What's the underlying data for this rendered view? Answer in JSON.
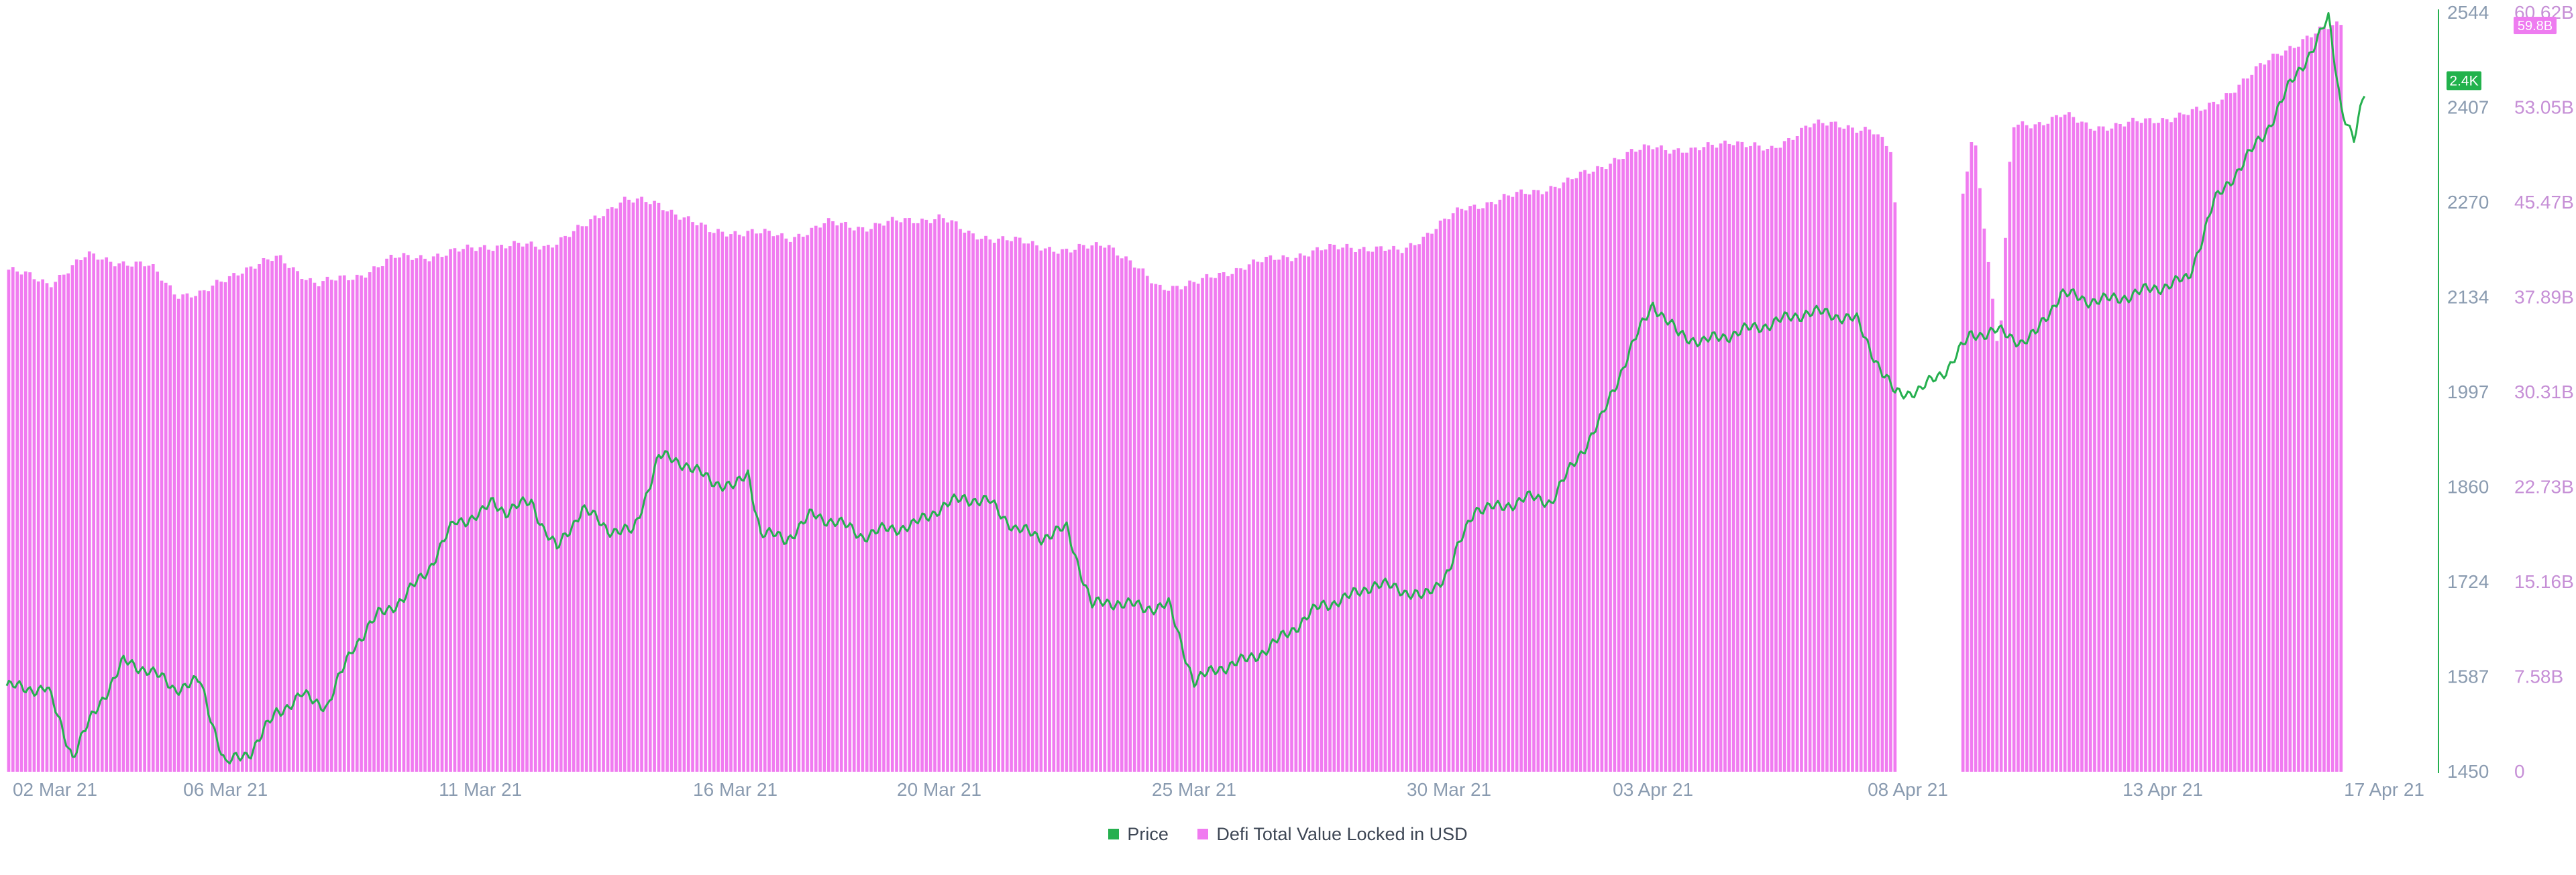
{
  "colors": {
    "price": "#26b04f",
    "tvl": "#f07bf0",
    "price_axis_text": "#8a9bb0",
    "tvl_axis_text": "#c68fd6",
    "date_axis_text": "#8a9bb0",
    "price_badge_bg": "#22b24c",
    "tvl_badge_bg": "#ee7cf0"
  },
  "legend": [
    {
      "name": "Price",
      "color": "#26b04f"
    },
    {
      "name": "Defi Total Value Locked in USD",
      "color": "#f07bf0"
    }
  ],
  "badges": {
    "price": "2.4K",
    "tvl": "59.8B"
  },
  "chart_data": {
    "type": "bar",
    "combo": "bar + line, dual y-axis",
    "title": "",
    "xlabel": "",
    "ylabel": "",
    "x_tick_labels": [
      "02 Mar 21",
      "06 Mar 21",
      "11 Mar 21",
      "16 Mar 21",
      "20 Mar 21",
      "25 Mar 21",
      "30 Mar 21",
      "03 Apr 21",
      "08 Apr 21",
      "13 Apr 21",
      "17 Apr 21"
    ],
    "x_range": [
      "2021-03-01T17:00",
      "2021-04-17T00:00"
    ],
    "legend_placement": "bottom-center",
    "grid": false,
    "y_left": {
      "series": "Defi Total Value Locked in USD",
      "range": [
        0,
        60.62
      ],
      "unit": "B",
      "tick_labels": [
        "0",
        "7.58B",
        "15.16B",
        "22.73B",
        "30.31B",
        "37.89B",
        "45.47B",
        "53.05B",
        "60.62B"
      ]
    },
    "y_right": {
      "series": "Price",
      "range": [
        1450,
        2544
      ],
      "tick_labels": [
        "1450",
        "1587",
        "1724",
        "1860",
        "1997",
        "2134",
        "2270",
        "2407",
        "2544"
      ]
    },
    "tvl_gap": [
      "2021-04-07T18:00",
      "2021-04-09T00:00"
    ],
    "tvl_anchors": [
      [
        "2021-03-01T17:00",
        40.1
      ],
      [
        "2021-03-02T12:00",
        39.0
      ],
      [
        "2021-03-03T06:00",
        41.2
      ],
      [
        "2021-03-04T12:00",
        40.3
      ],
      [
        "2021-03-05T00:00",
        38.2
      ],
      [
        "2021-03-05T12:00",
        38.1
      ],
      [
        "2021-03-06T06:00",
        40.1
      ],
      [
        "2021-03-07T00:00",
        41.0
      ],
      [
        "2021-03-07T18:00",
        39.0
      ],
      [
        "2021-03-08T12:00",
        39.5
      ],
      [
        "2021-03-09T06:00",
        41.0
      ],
      [
        "2021-03-10T06:00",
        41.3
      ],
      [
        "2021-03-11T00:00",
        42.0
      ],
      [
        "2021-03-12T06:00",
        42.0
      ],
      [
        "2021-03-13T00:00",
        43.5
      ],
      [
        "2021-03-13T18:00",
        45.8
      ],
      [
        "2021-03-14T12:00",
        45.2
      ],
      [
        "2021-03-15T00:00",
        44.3
      ],
      [
        "2021-03-15T12:00",
        43.0
      ],
      [
        "2021-03-16T06:00",
        43.2
      ],
      [
        "2021-03-17T00:00",
        42.6
      ],
      [
        "2021-03-17T18:00",
        43.8
      ],
      [
        "2021-03-18T12:00",
        43.5
      ],
      [
        "2021-03-19T06:00",
        44.0
      ],
      [
        "2021-03-20T00:00",
        44.3
      ],
      [
        "2021-03-20T12:00",
        43.0
      ],
      [
        "2021-03-21T06:00",
        42.5
      ],
      [
        "2021-03-22T00:00",
        42.0
      ],
      [
        "2021-03-22T12:00",
        41.5
      ],
      [
        "2021-03-23T06:00",
        42.3
      ],
      [
        "2021-03-24T06:00",
        38.7
      ],
      [
        "2021-03-25T00:00",
        39.0
      ],
      [
        "2021-03-26T00:00",
        40.5
      ],
      [
        "2021-03-27T06:00",
        41.5
      ],
      [
        "2021-03-28T00:00",
        42.0
      ],
      [
        "2021-03-29T00:00",
        41.5
      ],
      [
        "2021-03-30T06:00",
        45.0
      ],
      [
        "2021-03-31T06:00",
        46.0
      ],
      [
        "2021-04-01T06:00",
        47.0
      ],
      [
        "2021-04-02T06:00",
        49.0
      ],
      [
        "2021-04-03T00:00",
        50.0
      ],
      [
        "2021-04-03T18:00",
        49.5
      ],
      [
        "2021-04-04T12:00",
        50.5
      ],
      [
        "2021-04-05T06:00",
        49.5
      ],
      [
        "2021-04-06T00:00",
        51.7
      ],
      [
        "2021-04-06T18:00",
        51.6
      ],
      [
        "2021-04-07T06:00",
        51.3
      ],
      [
        "2021-04-07T15:00",
        49.5
      ],
      [
        "2021-04-07T18:00",
        43.0
      ],
      [
        "2021-04-09T00:00",
        45.0
      ],
      [
        "2021-04-09T06:00",
        51.5
      ],
      [
        "2021-04-09T18:00",
        33.0
      ],
      [
        "2021-04-10T00:00",
        51.5
      ],
      [
        "2021-04-10T12:00",
        51.8
      ],
      [
        "2021-04-11T00:00",
        52.5
      ],
      [
        "2021-04-11T12:00",
        51.5
      ],
      [
        "2021-04-12T06:00",
        51.7
      ],
      [
        "2021-04-13T00:00",
        52.2
      ],
      [
        "2021-04-13T18:00",
        52.8
      ],
      [
        "2021-04-14T12:00",
        55.0
      ],
      [
        "2021-04-15T06:00",
        57.5
      ],
      [
        "2021-04-15T18:00",
        58.5
      ],
      [
        "2021-04-16T06:00",
        59.5
      ],
      [
        "2021-04-16T11:00",
        59.8
      ]
    ],
    "price_anchors": [
      [
        "2021-03-01T17:00",
        1574
      ],
      [
        "2021-03-02T00:00",
        1570
      ],
      [
        "2021-03-02T12:00",
        1570
      ],
      [
        "2021-03-03T00:00",
        1473
      ],
      [
        "2021-03-03T12:00",
        1545
      ],
      [
        "2021-03-04T00:00",
        1608
      ],
      [
        "2021-03-04T12:00",
        1597
      ],
      [
        "2021-03-05T00:00",
        1570
      ],
      [
        "2021-03-05T12:00",
        1580
      ],
      [
        "2021-03-06T00:00",
        1460
      ],
      [
        "2021-03-06T12:00",
        1480
      ],
      [
        "2021-03-07T00:00",
        1535
      ],
      [
        "2021-03-07T12:00",
        1560
      ],
      [
        "2021-03-08T00:00",
        1545
      ],
      [
        "2021-03-08T12:00",
        1630
      ],
      [
        "2021-03-09T00:00",
        1676
      ],
      [
        "2021-03-09T12:00",
        1700
      ],
      [
        "2021-03-10T00:00",
        1745
      ],
      [
        "2021-03-10T12:00",
        1810
      ],
      [
        "2021-03-11T00:00",
        1820
      ],
      [
        "2021-03-11T06:00",
        1840
      ],
      [
        "2021-03-11T12:00",
        1825
      ],
      [
        "2021-03-12T00:00",
        1840
      ],
      [
        "2021-03-12T06:00",
        1800
      ],
      [
        "2021-03-12T12:00",
        1770
      ],
      [
        "2021-03-13T00:00",
        1830
      ],
      [
        "2021-03-13T12:00",
        1800
      ],
      [
        "2021-03-14T00:00",
        1795
      ],
      [
        "2021-03-14T12:00",
        1905
      ],
      [
        "2021-03-15T00:00",
        1895
      ],
      [
        "2021-03-15T12:00",
        1870
      ],
      [
        "2021-03-16T00:00",
        1860
      ],
      [
        "2021-03-16T06:00",
        1880
      ],
      [
        "2021-03-16T12:00",
        1795
      ],
      [
        "2021-03-17T00:00",
        1785
      ],
      [
        "2021-03-17T12:00",
        1820
      ],
      [
        "2021-03-18T00:00",
        1810
      ],
      [
        "2021-03-18T12:00",
        1790
      ],
      [
        "2021-03-19T00:00",
        1800
      ],
      [
        "2021-03-19T12:00",
        1805
      ],
      [
        "2021-03-20T00:00",
        1830
      ],
      [
        "2021-03-20T12:00",
        1845
      ],
      [
        "2021-03-21T00:00",
        1838
      ],
      [
        "2021-03-21T12:00",
        1800
      ],
      [
        "2021-03-22T00:00",
        1788
      ],
      [
        "2021-03-22T12:00",
        1800
      ],
      [
        "2021-03-23T00:00",
        1690
      ],
      [
        "2021-03-23T12:00",
        1695
      ],
      [
        "2021-03-24T00:00",
        1686
      ],
      [
        "2021-03-24T12:00",
        1690
      ],
      [
        "2021-03-25T00:00",
        1580
      ],
      [
        "2021-03-25T12:00",
        1600
      ],
      [
        "2021-03-26T00:00",
        1610
      ],
      [
        "2021-03-26T12:00",
        1630
      ],
      [
        "2021-03-27T00:00",
        1660
      ],
      [
        "2021-03-27T12:00",
        1690
      ],
      [
        "2021-03-28T00:00",
        1700
      ],
      [
        "2021-03-28T12:00",
        1720
      ],
      [
        "2021-03-29T00:00",
        1715
      ],
      [
        "2021-03-29T12:00",
        1700
      ],
      [
        "2021-03-30T00:00",
        1740
      ],
      [
        "2021-03-30T12:00",
        1830
      ],
      [
        "2021-03-31T00:00",
        1830
      ],
      [
        "2021-03-31T12:00",
        1845
      ],
      [
        "2021-04-01T00:00",
        1840
      ],
      [
        "2021-04-01T12:00",
        1900
      ],
      [
        "2021-04-02T00:00",
        1960
      ],
      [
        "2021-04-02T12:00",
        2050
      ],
      [
        "2021-04-03T00:00",
        2125
      ],
      [
        "2021-04-03T12:00",
        2080
      ],
      [
        "2021-04-04T00:00",
        2070
      ],
      [
        "2021-04-04T12:00",
        2080
      ],
      [
        "2021-04-05T00:00",
        2090
      ],
      [
        "2021-04-05T12:00",
        2100
      ],
      [
        "2021-04-06T00:00",
        2112
      ],
      [
        "2021-04-06T12:00",
        2110
      ],
      [
        "2021-04-07T00:00",
        2100
      ],
      [
        "2021-04-07T12:00",
        2025
      ],
      [
        "2021-04-07T18:00",
        1995
      ],
      [
        "2021-04-08T06:00",
        2000
      ],
      [
        "2021-04-08T18:00",
        2030
      ],
      [
        "2021-04-09T06:00",
        2080
      ],
      [
        "2021-04-09T18:00",
        2085
      ],
      [
        "2021-04-10T06:00",
        2070
      ],
      [
        "2021-04-10T12:00",
        2080
      ],
      [
        "2021-04-11T00:00",
        2140
      ],
      [
        "2021-04-11T12:00",
        2130
      ],
      [
        "2021-04-12T00:00",
        2130
      ],
      [
        "2021-04-12T12:00",
        2140
      ],
      [
        "2021-04-13T00:00",
        2150
      ],
      [
        "2021-04-13T12:00",
        2160
      ],
      [
        "2021-04-14T00:00",
        2270
      ],
      [
        "2021-04-14T12:00",
        2320
      ],
      [
        "2021-04-15T00:00",
        2370
      ],
      [
        "2021-04-15T12:00",
        2440
      ],
      [
        "2021-04-16T00:00",
        2500
      ],
      [
        "2021-04-16T06:00",
        2535
      ],
      [
        "2021-04-16T12:00",
        2410
      ],
      [
        "2021-04-16T18:00",
        2360
      ],
      [
        "2021-04-16T23:00",
        2425
      ]
    ]
  }
}
